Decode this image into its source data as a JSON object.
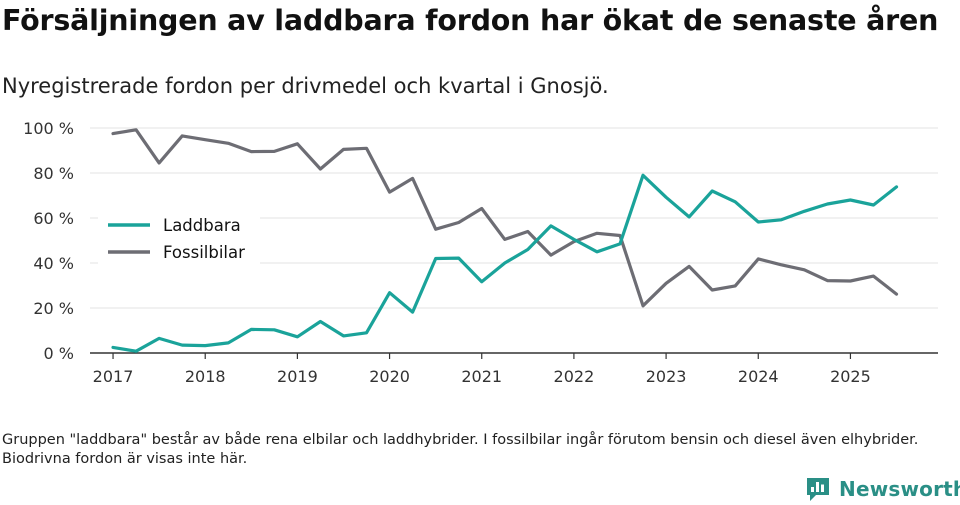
{
  "title": "Försäljningen av laddbara fordon har ökat de senaste åren",
  "subtitle": "Nyregistrerade fordon per drivmedel och kvartal i Gnosjö.",
  "footnote": "Gruppen \"laddbara\" består av både rena elbilar och laddhybrider. I fossilbilar ingår förutom bensin och diesel även elhybrider. Biodrivna fordon är visas inte här.",
  "logo": {
    "text": "Newsworthy",
    "icon": "bar-chart-logo-icon",
    "color": "#2a8f86"
  },
  "chart_data": {
    "type": "line",
    "title": "Försäljningen av laddbara fordon har ökat de senaste åren",
    "subtitle": "Nyregistrerade fordon per drivmedel och kvartal i Gnosjö.",
    "xlabel": "",
    "ylabel": "",
    "ylim": [
      0,
      100
    ],
    "xlim": [
      2016.75,
      2025.95
    ],
    "yticks": [
      0,
      20,
      40,
      60,
      80,
      100
    ],
    "ytick_labels": [
      "0 %",
      "20 %",
      "40 %",
      "60 %",
      "80 %",
      "100 %"
    ],
    "xticks": [
      2017,
      2018,
      2019,
      2020,
      2021,
      2022,
      2023,
      2024,
      2025
    ],
    "xtick_labels": [
      "2017",
      "2018",
      "2019",
      "2020",
      "2021",
      "2022",
      "2023",
      "2024",
      "2025"
    ],
    "grid": true,
    "legend_position": "left",
    "x": [
      2017.0,
      2017.25,
      2017.5,
      2017.75,
      2018.0,
      2018.25,
      2018.5,
      2018.75,
      2019.0,
      2019.25,
      2019.5,
      2019.75,
      2020.0,
      2020.25,
      2020.5,
      2020.75,
      2021.0,
      2021.25,
      2021.5,
      2021.75,
      2022.0,
      2022.25,
      2022.5,
      2022.75,
      2023.0,
      2023.25,
      2023.5,
      2023.75,
      2024.0,
      2024.25,
      2024.5,
      2024.75,
      2025.0,
      2025.25,
      2025.5
    ],
    "series": [
      {
        "name": "Laddbara",
        "color": "#1aa39a",
        "values": [
          2.5,
          0.8,
          6.5,
          3.5,
          3.3,
          4.5,
          10.5,
          10.3,
          7.2,
          14.0,
          7.6,
          9.0,
          26.8,
          18.2,
          42.0,
          42.2,
          31.7,
          40.0,
          46.0,
          56.5,
          50.5,
          45.0,
          48.5,
          79.0,
          69.2,
          60.5,
          72.0,
          67.2,
          58.2,
          59.2,
          63.0,
          66.2,
          68.0,
          65.8,
          73.8
        ]
      },
      {
        "name": "Fossilbilar",
        "color": "#6d6d74",
        "values": [
          97.5,
          99.2,
          84.5,
          96.5,
          94.8,
          93.2,
          89.5,
          89.6,
          93.0,
          81.8,
          90.5,
          91.0,
          71.5,
          77.6,
          55.0,
          58.0,
          64.2,
          50.5,
          54.0,
          43.5,
          49.5,
          53.2,
          52.2,
          21.0,
          31.0,
          38.5,
          28.0,
          29.8,
          41.8,
          39.2,
          37.0,
          32.2,
          32.0,
          34.2,
          26.2
        ]
      }
    ]
  }
}
